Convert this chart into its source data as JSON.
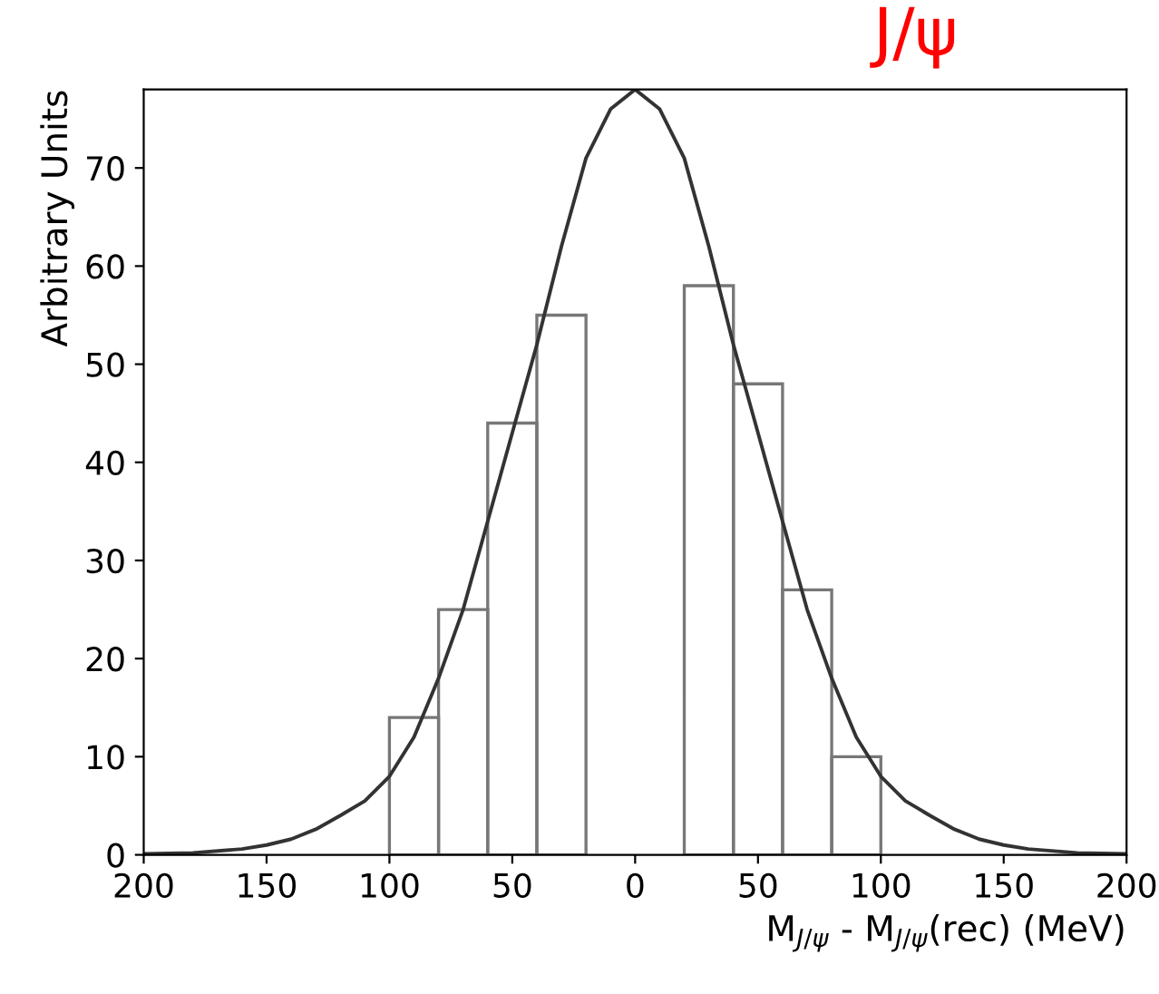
{
  "chart_data": {
    "type": "histogram",
    "xlabel": "M$_{J/ψ}$ - M$_{J/ψ}$(rec) (MeV)",
    "ylabel": "Arbitrary Units",
    "annotations": [
      "J/ψ"
    ],
    "bins": [
      -100,
      -80,
      -60,
      -40,
      -20,
      20,
      40,
      60,
      80,
      100
    ],
    "values": [
      14,
      25,
      44,
      55,
      null,
      58,
      48,
      27,
      10
    ],
    "color": "#777777",
    "series": [
      {
        "type": "line",
        "color": "#333333",
        "x": [
          -200,
          -180,
          -160,
          -150,
          -140,
          -130,
          -120,
          -110,
          -100,
          -90,
          -80,
          -70,
          -60,
          -50,
          -40,
          -30,
          -20,
          -10,
          0,
          10,
          20,
          30,
          40,
          50,
          60,
          70,
          80,
          90,
          100,
          110,
          120,
          130,
          140,
          150,
          160,
          180,
          200
        ],
        "values": [
          0.1,
          0.2,
          0.6,
          1,
          1.6,
          2.6,
          4,
          5.5,
          8,
          12,
          18,
          25,
          34,
          43,
          52,
          62,
          71,
          76,
          78,
          76,
          71,
          62,
          52,
          43,
          34,
          25,
          18,
          12,
          8,
          5.5,
          4,
          2.6,
          1.6,
          1,
          0.6,
          0.2,
          0.1
        ]
      }
    ],
    "xlim": [
      -200,
      200
    ],
    "xticks": [
      {
        "value": -200,
        "label": "200"
      },
      {
        "value": -150,
        "label": "150"
      },
      {
        "value": -100,
        "label": "100"
      },
      {
        "value": -50,
        "label": "50"
      },
      0,
      50,
      100,
      150,
      200
    ],
    "ylim": [
      0,
      78
    ],
    "yticks": [
      0,
      10,
      20,
      30,
      40,
      50,
      60,
      70
    ],
    "grid": false,
    "legend": false
  }
}
